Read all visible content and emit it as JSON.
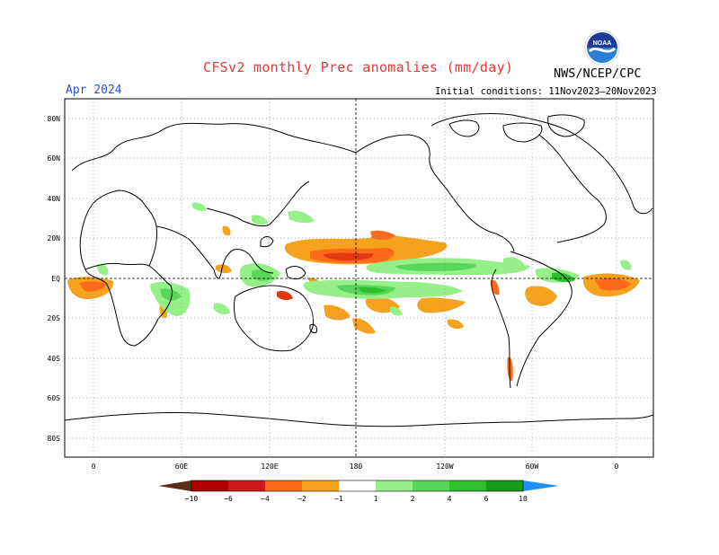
{
  "header": {
    "title": "CFSv2 monthly Prec anomalies (mm/day)",
    "agency": "NWS/NCEP/CPC",
    "logo_text": "NOAA",
    "period": "Apr 2024",
    "initial_conditions": "Initial conditions: 11Nov2023–20Nov2023"
  },
  "map": {
    "projection": "cylindrical-equidistant",
    "lon_range": [
      -20,
      380
    ],
    "lat_range": [
      -90,
      90
    ],
    "grid": "dotted",
    "dashed_lines": [
      "equator",
      "180"
    ],
    "lat_labels": [
      "80N",
      "60N",
      "40N",
      "20N",
      "EQ",
      "20S",
      "40S",
      "60S",
      "80S"
    ],
    "lon_labels": [
      "0",
      "60E",
      "120E",
      "180",
      "120W",
      "60W",
      "0"
    ]
  },
  "colorbar": {
    "ticks": [
      "−10",
      "−6",
      "−4",
      "−2",
      "−1",
      "1",
      "2",
      "4",
      "6",
      "10"
    ],
    "colors": [
      "#5a2d18",
      "#b00000",
      "#cc1a1a",
      "#e23a10",
      "#ff6a1a",
      "#f5a21e",
      "#ffffff",
      "#95f08a",
      "#5ad65a",
      "#2fbf2f",
      "#189b18",
      "#0a8a0a",
      "#1e90ff"
    ]
  },
  "anomalies": {
    "dry_colors": [
      "#f5a21e",
      "#ff6a1a",
      "#e23a10"
    ],
    "wet_colors": [
      "#95f08a",
      "#5ad65a",
      "#2fbf2f"
    ]
  }
}
